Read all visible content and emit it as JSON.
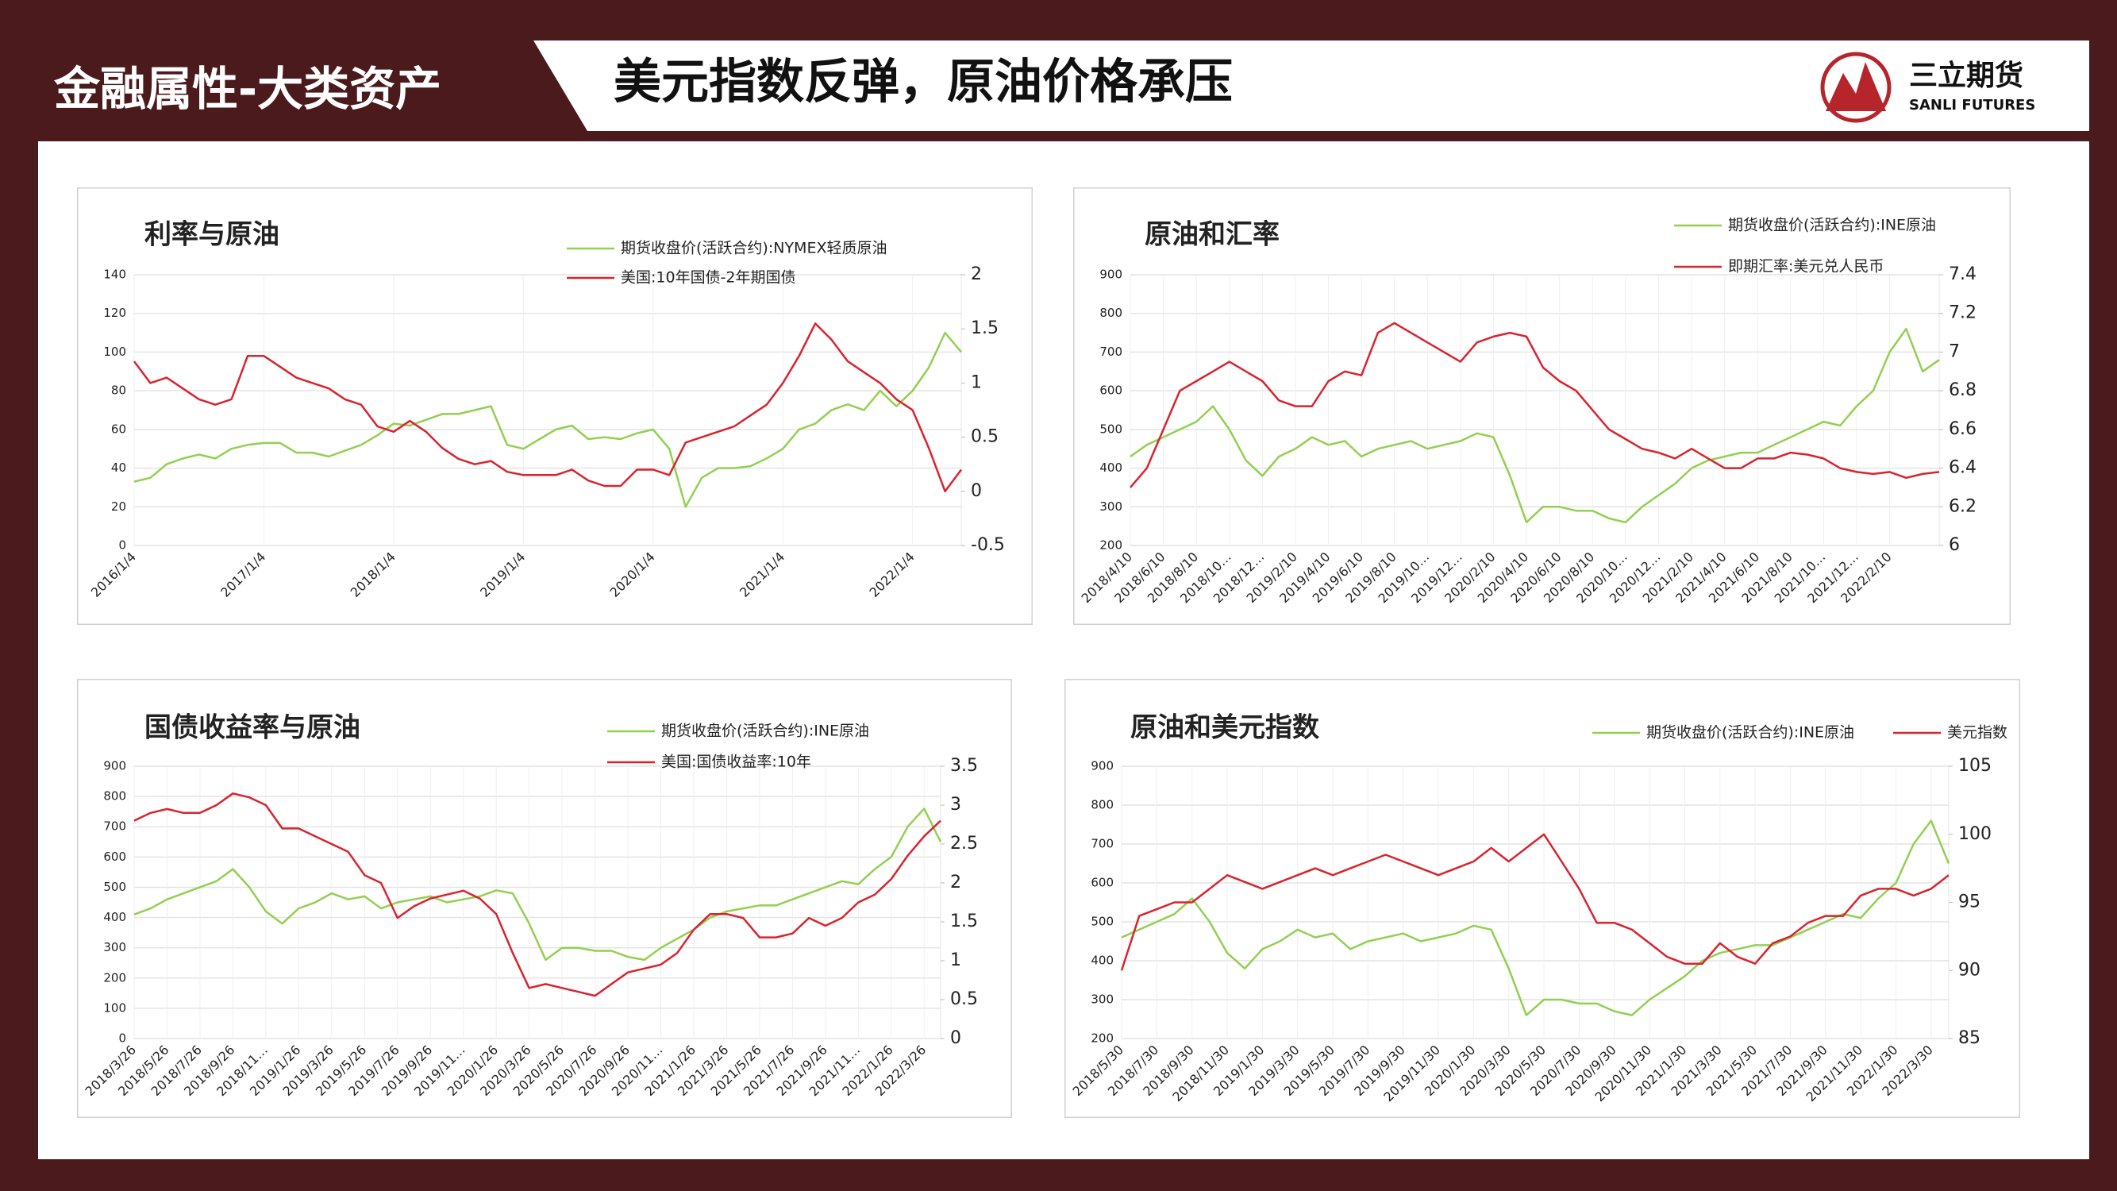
{
  "header": {
    "section": "金融属性-大类资产",
    "title": "美元指数反弹，原油价格承压",
    "logo_name": "三立期货",
    "logo_sub": "SANLI FUTURES"
  },
  "chart_data": [
    {
      "type": "line",
      "title": "利率与原油",
      "categories": [
        "2016/1/4",
        null,
        null,
        null,
        null,
        null,
        null,
        null,
        "2017/1/4",
        null,
        null,
        null,
        null,
        null,
        null,
        null,
        "2018/1/4",
        null,
        null,
        null,
        null,
        null,
        null,
        null,
        "2019/1/4",
        null,
        null,
        null,
        null,
        null,
        null,
        null,
        "2020/1/4",
        null,
        null,
        null,
        null,
        null,
        null,
        null,
        "2021/1/4",
        null,
        null,
        null,
        null,
        null,
        null,
        null,
        "2022/1/4",
        null,
        null,
        null
      ],
      "series": [
        {
          "name": "期货收盘价(活跃合约):NYMEX轻质原油",
          "color": "#92d050",
          "values": [
            33,
            35,
            42,
            45,
            47,
            45,
            50,
            52,
            53,
            53,
            48,
            48,
            46,
            49,
            52,
            57,
            63,
            62,
            65,
            68,
            68,
            70,
            72,
            52,
            50,
            55,
            60,
            62,
            55,
            56,
            55,
            58,
            60,
            50,
            20,
            35,
            40,
            40,
            41,
            45,
            50,
            60,
            63,
            70,
            73,
            70,
            80,
            72,
            80,
            92,
            110,
            100
          ]
        },
        {
          "name": "美国:10年国债-2年期国债",
          "color": "#d9232d",
          "axis": "y2",
          "values": [
            1.2,
            1.0,
            1.05,
            0.95,
            0.85,
            0.8,
            0.85,
            1.25,
            1.25,
            1.15,
            1.05,
            1.0,
            0.95,
            0.85,
            0.8,
            0.6,
            0.55,
            0.65,
            0.55,
            0.4,
            0.3,
            0.25,
            0.28,
            0.18,
            0.15,
            0.15,
            0.15,
            0.2,
            0.1,
            0.05,
            0.05,
            0.2,
            0.2,
            0.15,
            0.45,
            0.5,
            0.55,
            0.6,
            0.7,
            0.8,
            1.0,
            1.25,
            1.55,
            1.4,
            1.2,
            1.1,
            1.0,
            0.85,
            0.75,
            0.4,
            0.0,
            0.2
          ]
        }
      ],
      "ylim": [
        0,
        140
      ],
      "yticks": [
        0,
        20,
        40,
        60,
        80,
        100,
        120,
        140
      ],
      "y2lim": [
        -0.5,
        2
      ],
      "y2ticks": [
        -0.5,
        0,
        0.5,
        1,
        1.5,
        2
      ],
      "grid": true
    },
    {
      "type": "line",
      "title": "原油和汇率",
      "categories": [
        "2018/4/10",
        null,
        "2018/6/10",
        null,
        "2018/8/10",
        null,
        "2018/10…",
        null,
        "2018/12…",
        null,
        "2019/2/10",
        null,
        "2019/4/10",
        null,
        "2019/6/10",
        null,
        "2019/8/10",
        null,
        "2019/10…",
        null,
        "2019/12…",
        null,
        "2020/2/10",
        null,
        "2020/4/10",
        null,
        "2020/6/10",
        null,
        "2020/8/10",
        null,
        "2020/10…",
        null,
        "2020/12…",
        null,
        "2021/2/10",
        null,
        "2021/4/10",
        null,
        "2021/6/10",
        null,
        "2021/8/10",
        null,
        "2021/10…",
        null,
        "2021/12…",
        null,
        "2022/2/10",
        null,
        null,
        null
      ],
      "series": [
        {
          "name": "期货收盘价(活跃合约):INE原油",
          "color": "#92d050",
          "values": [
            430,
            460,
            480,
            500,
            520,
            560,
            500,
            420,
            380,
            430,
            450,
            480,
            460,
            470,
            430,
            450,
            460,
            470,
            450,
            460,
            470,
            490,
            480,
            380,
            260,
            300,
            300,
            290,
            290,
            270,
            260,
            300,
            330,
            360,
            400,
            420,
            430,
            440,
            440,
            460,
            480,
            500,
            520,
            510,
            560,
            600,
            700,
            760,
            650,
            680
          ]
        },
        {
          "name": "即期汇率:美元兑人民币",
          "color": "#d9232d",
          "axis": "y2",
          "values": [
            6.3,
            6.4,
            6.6,
            6.8,
            6.85,
            6.9,
            6.95,
            6.9,
            6.85,
            6.75,
            6.72,
            6.72,
            6.85,
            6.9,
            6.88,
            7.1,
            7.15,
            7.1,
            7.05,
            7.0,
            6.95,
            7.05,
            7.08,
            7.1,
            7.08,
            6.92,
            6.85,
            6.8,
            6.7,
            6.6,
            6.55,
            6.5,
            6.48,
            6.45,
            6.5,
            6.45,
            6.4,
            6.4,
            6.45,
            6.45,
            6.48,
            6.47,
            6.45,
            6.4,
            6.38,
            6.37,
            6.38,
            6.35,
            6.37,
            6.38
          ]
        }
      ],
      "ylim": [
        200,
        900
      ],
      "yticks": [
        200,
        300,
        400,
        500,
        600,
        700,
        800,
        900
      ],
      "y2lim": [
        6,
        7.4
      ],
      "y2ticks": [
        6,
        6.2,
        6.4,
        6.6,
        6.8,
        7,
        7.2,
        7.4
      ],
      "grid": true
    },
    {
      "type": "line",
      "title": "国债收益率与原油",
      "categories": [
        "2018/3/26",
        null,
        "2018/5/26",
        null,
        "2018/7/26",
        null,
        "2018/9/26",
        null,
        "2018/11…",
        null,
        "2019/1/26",
        null,
        "2019/3/26",
        null,
        "2019/5/26",
        null,
        "2019/7/26",
        null,
        "2019/9/26",
        null,
        "2019/11…",
        null,
        "2020/1/26",
        null,
        "2020/3/26",
        null,
        "2020/5/26",
        null,
        "2020/7/26",
        null,
        "2020/9/26",
        null,
        "2020/11…",
        null,
        "2021/1/26",
        null,
        "2021/3/26",
        null,
        "2021/5/26",
        null,
        "2021/7/26",
        null,
        "2021/9/26",
        null,
        "2021/11…",
        null,
        "2022/1/26",
        null,
        "2022/3/26",
        null
      ],
      "series": [
        {
          "name": "期货收盘价(活跃合约):INE原油",
          "color": "#92d050",
          "values": [
            410,
            430,
            460,
            480,
            500,
            520,
            560,
            500,
            420,
            380,
            430,
            450,
            480,
            460,
            470,
            430,
            450,
            460,
            470,
            450,
            460,
            470,
            490,
            480,
            380,
            260,
            300,
            300,
            290,
            290,
            270,
            260,
            300,
            330,
            360,
            400,
            420,
            430,
            440,
            440,
            460,
            480,
            500,
            520,
            510,
            560,
            600,
            700,
            760,
            650
          ]
        },
        {
          "name": "美国:国债收益率:10年",
          "color": "#d9232d",
          "axis": "y2",
          "values": [
            2.8,
            2.9,
            2.95,
            2.9,
            2.9,
            3.0,
            3.15,
            3.1,
            3.0,
            2.7,
            2.7,
            2.6,
            2.5,
            2.4,
            2.1,
            2.0,
            1.55,
            1.7,
            1.8,
            1.85,
            1.9,
            1.8,
            1.6,
            1.1,
            0.65,
            0.7,
            0.65,
            0.6,
            0.55,
            0.7,
            0.85,
            0.9,
            0.95,
            1.1,
            1.4,
            1.6,
            1.6,
            1.55,
            1.3,
            1.3,
            1.35,
            1.55,
            1.45,
            1.55,
            1.75,
            1.85,
            2.05,
            2.35,
            2.6,
            2.8
          ]
        }
      ],
      "ylim": [
        0,
        900
      ],
      "yticks": [
        0,
        100,
        200,
        300,
        400,
        500,
        600,
        700,
        800,
        900
      ],
      "y2lim": [
        0,
        3.5
      ],
      "y2ticks": [
        0,
        0.5,
        1,
        1.5,
        2,
        2.5,
        3,
        3.5
      ],
      "grid": true
    },
    {
      "type": "line",
      "title": "原油和美元指数",
      "categories": [
        "2018/5/30",
        null,
        "2018/7/30",
        null,
        "2018/9/30",
        null,
        "2018/11/30",
        null,
        "2019/1/30",
        null,
        "2019/3/30",
        null,
        "2019/5/30",
        null,
        "2019/7/30",
        null,
        "2019/9/30",
        null,
        "2019/11/30",
        null,
        "2020/1/30",
        null,
        "2020/3/30",
        null,
        "2020/5/30",
        null,
        "2020/7/30",
        null,
        "2020/9/30",
        null,
        "2020/11/30",
        null,
        "2021/1/30",
        null,
        "2021/3/30",
        null,
        "2021/5/30",
        null,
        "2021/7/30",
        null,
        "2021/9/30",
        null,
        "2021/11/30",
        null,
        "2022/1/30",
        null,
        "2022/3/30",
        null
      ],
      "series": [
        {
          "name": "期货收盘价(活跃合约):INE原油",
          "color": "#92d050",
          "values": [
            460,
            480,
            500,
            520,
            560,
            500,
            420,
            380,
            430,
            450,
            480,
            460,
            470,
            430,
            450,
            460,
            470,
            450,
            460,
            470,
            490,
            480,
            380,
            260,
            300,
            300,
            290,
            290,
            270,
            260,
            300,
            330,
            360,
            400,
            420,
            430,
            440,
            440,
            460,
            480,
            500,
            520,
            510,
            560,
            600,
            700,
            760,
            650
          ]
        },
        {
          "name": "美元指数",
          "color": "#d9232d",
          "axis": "y2",
          "values": [
            90,
            94,
            94.5,
            95,
            95,
            96,
            97,
            96.5,
            96,
            96.5,
            97,
            97.5,
            97,
            97.5,
            98,
            98.5,
            98,
            97.5,
            97,
            97.5,
            98,
            99,
            98,
            99,
            100,
            98,
            96,
            93.5,
            93.5,
            93,
            92,
            91,
            90.5,
            90.5,
            92,
            91,
            90.5,
            92,
            92.5,
            93.5,
            94,
            94,
            95.5,
            96,
            96,
            95.5,
            96,
            97
          ]
        }
      ],
      "ylim": [
        200,
        900
      ],
      "yticks": [
        200,
        300,
        400,
        500,
        600,
        700,
        800,
        900
      ],
      "y2lim": [
        85,
        105
      ],
      "y2ticks": [
        85,
        90,
        95,
        100,
        105
      ],
      "grid": true
    }
  ]
}
